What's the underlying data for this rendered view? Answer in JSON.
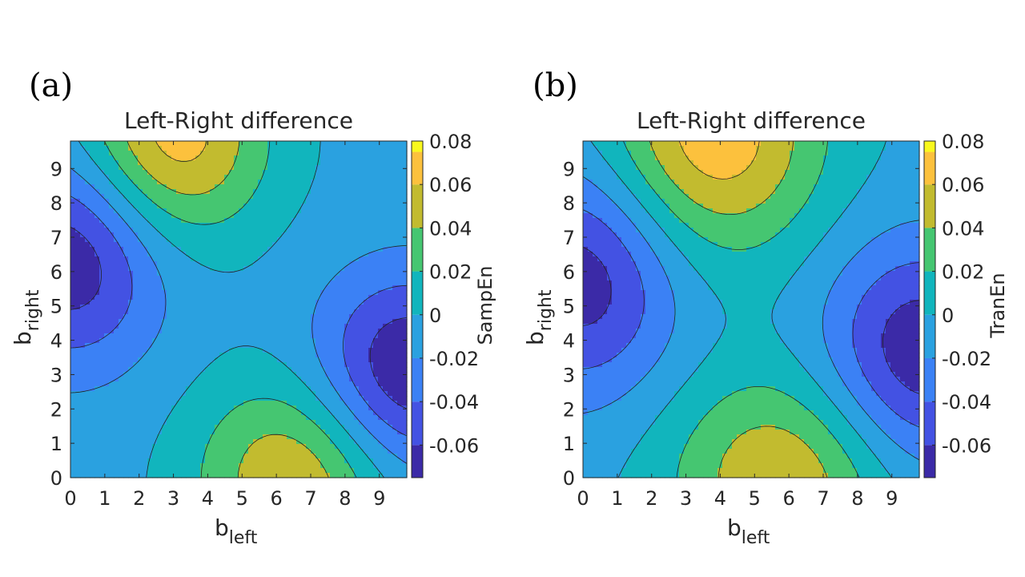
{
  "colors": {
    "levels": [
      "#3b2aa7",
      "#4352e3",
      "#3b81f5",
      "#2aa1e0",
      "#11b5bd",
      "#45c671",
      "#c2bb2f",
      "#fcc13d",
      "#f9f81d"
    ],
    "contour_line": "#222222",
    "axis": "#262626"
  },
  "chart_data": [
    {
      "type": "contour",
      "panel_label": "(a)",
      "title": "Left-Right difference",
      "xlabel_main": "b",
      "xlabel_sub": "left",
      "ylabel_main": "b",
      "ylabel_sub": "right",
      "xlim": [
        0,
        9.8
      ],
      "ylim": [
        0,
        9.8
      ],
      "xticks": [
        "0",
        "1",
        "2",
        "3",
        "4",
        "5",
        "6",
        "7",
        "8",
        "9"
      ],
      "yticks": [
        "0",
        "1",
        "2",
        "3",
        "4",
        "5",
        "6",
        "7",
        "8",
        "9"
      ],
      "colorbar_label": "SampEn",
      "colorbar_ticks": [
        "0.08",
        "0.06",
        "0.04",
        "0.02",
        "0",
        "-0.02",
        "-0.04",
        "-0.06"
      ],
      "colorbar_range": [
        -0.075,
        0.08
      ],
      "z_model": {
        "description": "approximate field z(x,y) read from contour bands",
        "peaks": [
          {
            "x": 3.0,
            "y": 9.9,
            "value": 0.078
          },
          {
            "x": 6.5,
            "y": 0.0,
            "value": 0.065
          },
          {
            "x": 0.0,
            "y": 6.4,
            "value": -0.07
          },
          {
            "x": 9.8,
            "y": 3.1,
            "value": -0.075
          }
        ]
      },
      "contour_levels": [
        -0.06,
        -0.04,
        -0.02,
        0.0,
        0.02,
        0.04,
        0.06,
        0.075
      ]
    },
    {
      "type": "contour",
      "panel_label": "(b)",
      "title": "Left-Right difference",
      "xlabel_main": "b",
      "xlabel_sub": "left",
      "ylabel_main": "b",
      "ylabel_sub": "right",
      "xlim": [
        0,
        9.8
      ],
      "ylim": [
        0,
        9.8
      ],
      "xticks": [
        "0",
        "1",
        "2",
        "3",
        "4",
        "5",
        "6",
        "7",
        "8",
        "9"
      ],
      "yticks": [
        "0",
        "1",
        "2",
        "3",
        "4",
        "5",
        "6",
        "7",
        "8",
        "9"
      ],
      "colorbar_label": "TranEn",
      "colorbar_ticks": [
        "0.08",
        "0.06",
        "0.04",
        "0.02",
        "0",
        "-0.02",
        "-0.04",
        "-0.06"
      ],
      "colorbar_range": [
        -0.075,
        0.08
      ],
      "z_model": {
        "description": "approximate field z(x,y) read from contour bands",
        "peaks": [
          {
            "x": 3.8,
            "y": 9.9,
            "value": 0.078
          },
          {
            "x": 5.8,
            "y": 0.0,
            "value": 0.062
          },
          {
            "x": 0.0,
            "y": 5.8,
            "value": -0.068
          },
          {
            "x": 9.8,
            "y": 3.6,
            "value": -0.072
          }
        ]
      },
      "contour_levels": [
        -0.06,
        -0.04,
        -0.02,
        0.0,
        0.02,
        0.04,
        0.06,
        0.075
      ]
    }
  ]
}
